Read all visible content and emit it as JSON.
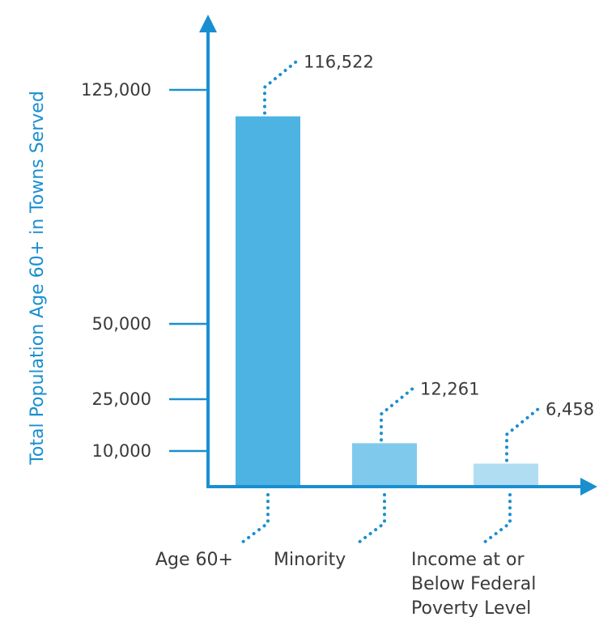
{
  "chart_data": {
    "type": "bar",
    "ylabel": "Total Population Age 60+ in Towns Served",
    "y_ticks": [
      {
        "value": 10000,
        "label": "10,000"
      },
      {
        "value": 25000,
        "label": "25,000"
      },
      {
        "value": 50000,
        "label": "50,000"
      },
      {
        "value": 125000,
        "label": "125,000"
      }
    ],
    "categories": [
      {
        "lines": [
          "Age 60+"
        ]
      },
      {
        "lines": [
          "Minority"
        ]
      },
      {
        "lines": [
          "Income at or",
          "Below Federal",
          "Poverty Level"
        ]
      }
    ],
    "values": [
      116522,
      12261,
      6458
    ],
    "value_labels": [
      "116,522",
      "12,261",
      "6,458"
    ],
    "axis_scale": "piecewise (non-linear tick spacing as drawn)",
    "grid": false,
    "colors": {
      "axis": "#1a8fd0",
      "leader_dots": "#1a8fd0",
      "bars": [
        "#4db3e3",
        "#7fc9ec",
        "#b1ddf3"
      ],
      "text": "#3a3a3a"
    }
  }
}
